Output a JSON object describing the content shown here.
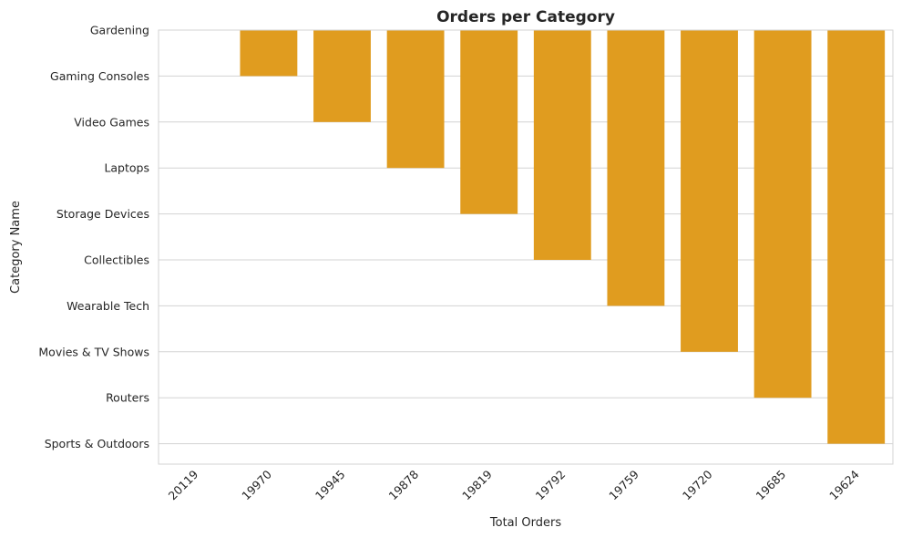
{
  "chart_data": {
    "type": "bar",
    "title": "Orders per Category",
    "xlabel": "Total Orders",
    "ylabel": "Category Name",
    "categories": [
      "20119",
      "19970",
      "19945",
      "19878",
      "19819",
      "19792",
      "19759",
      "19720",
      "19685",
      "19624"
    ],
    "y_categories": [
      "Gardening",
      "Gaming Consoles",
      "Video Games",
      "Laptops",
      "Storage Devices",
      "Collectibles",
      "Wearable Tech",
      "Movies & TV Shows",
      "Routers",
      "Sports & Outdoors"
    ],
    "values": [
      "Gardening",
      "Gaming Consoles",
      "Video Games",
      "Laptops",
      "Storage Devices",
      "Collectibles",
      "Wearable Tech",
      "Movies & TV Shows",
      "Routers",
      "Sports & Outdoors"
    ],
    "bar_color": "#e09c1f",
    "grid": "horizontal",
    "x_tick_rotation": 45
  }
}
